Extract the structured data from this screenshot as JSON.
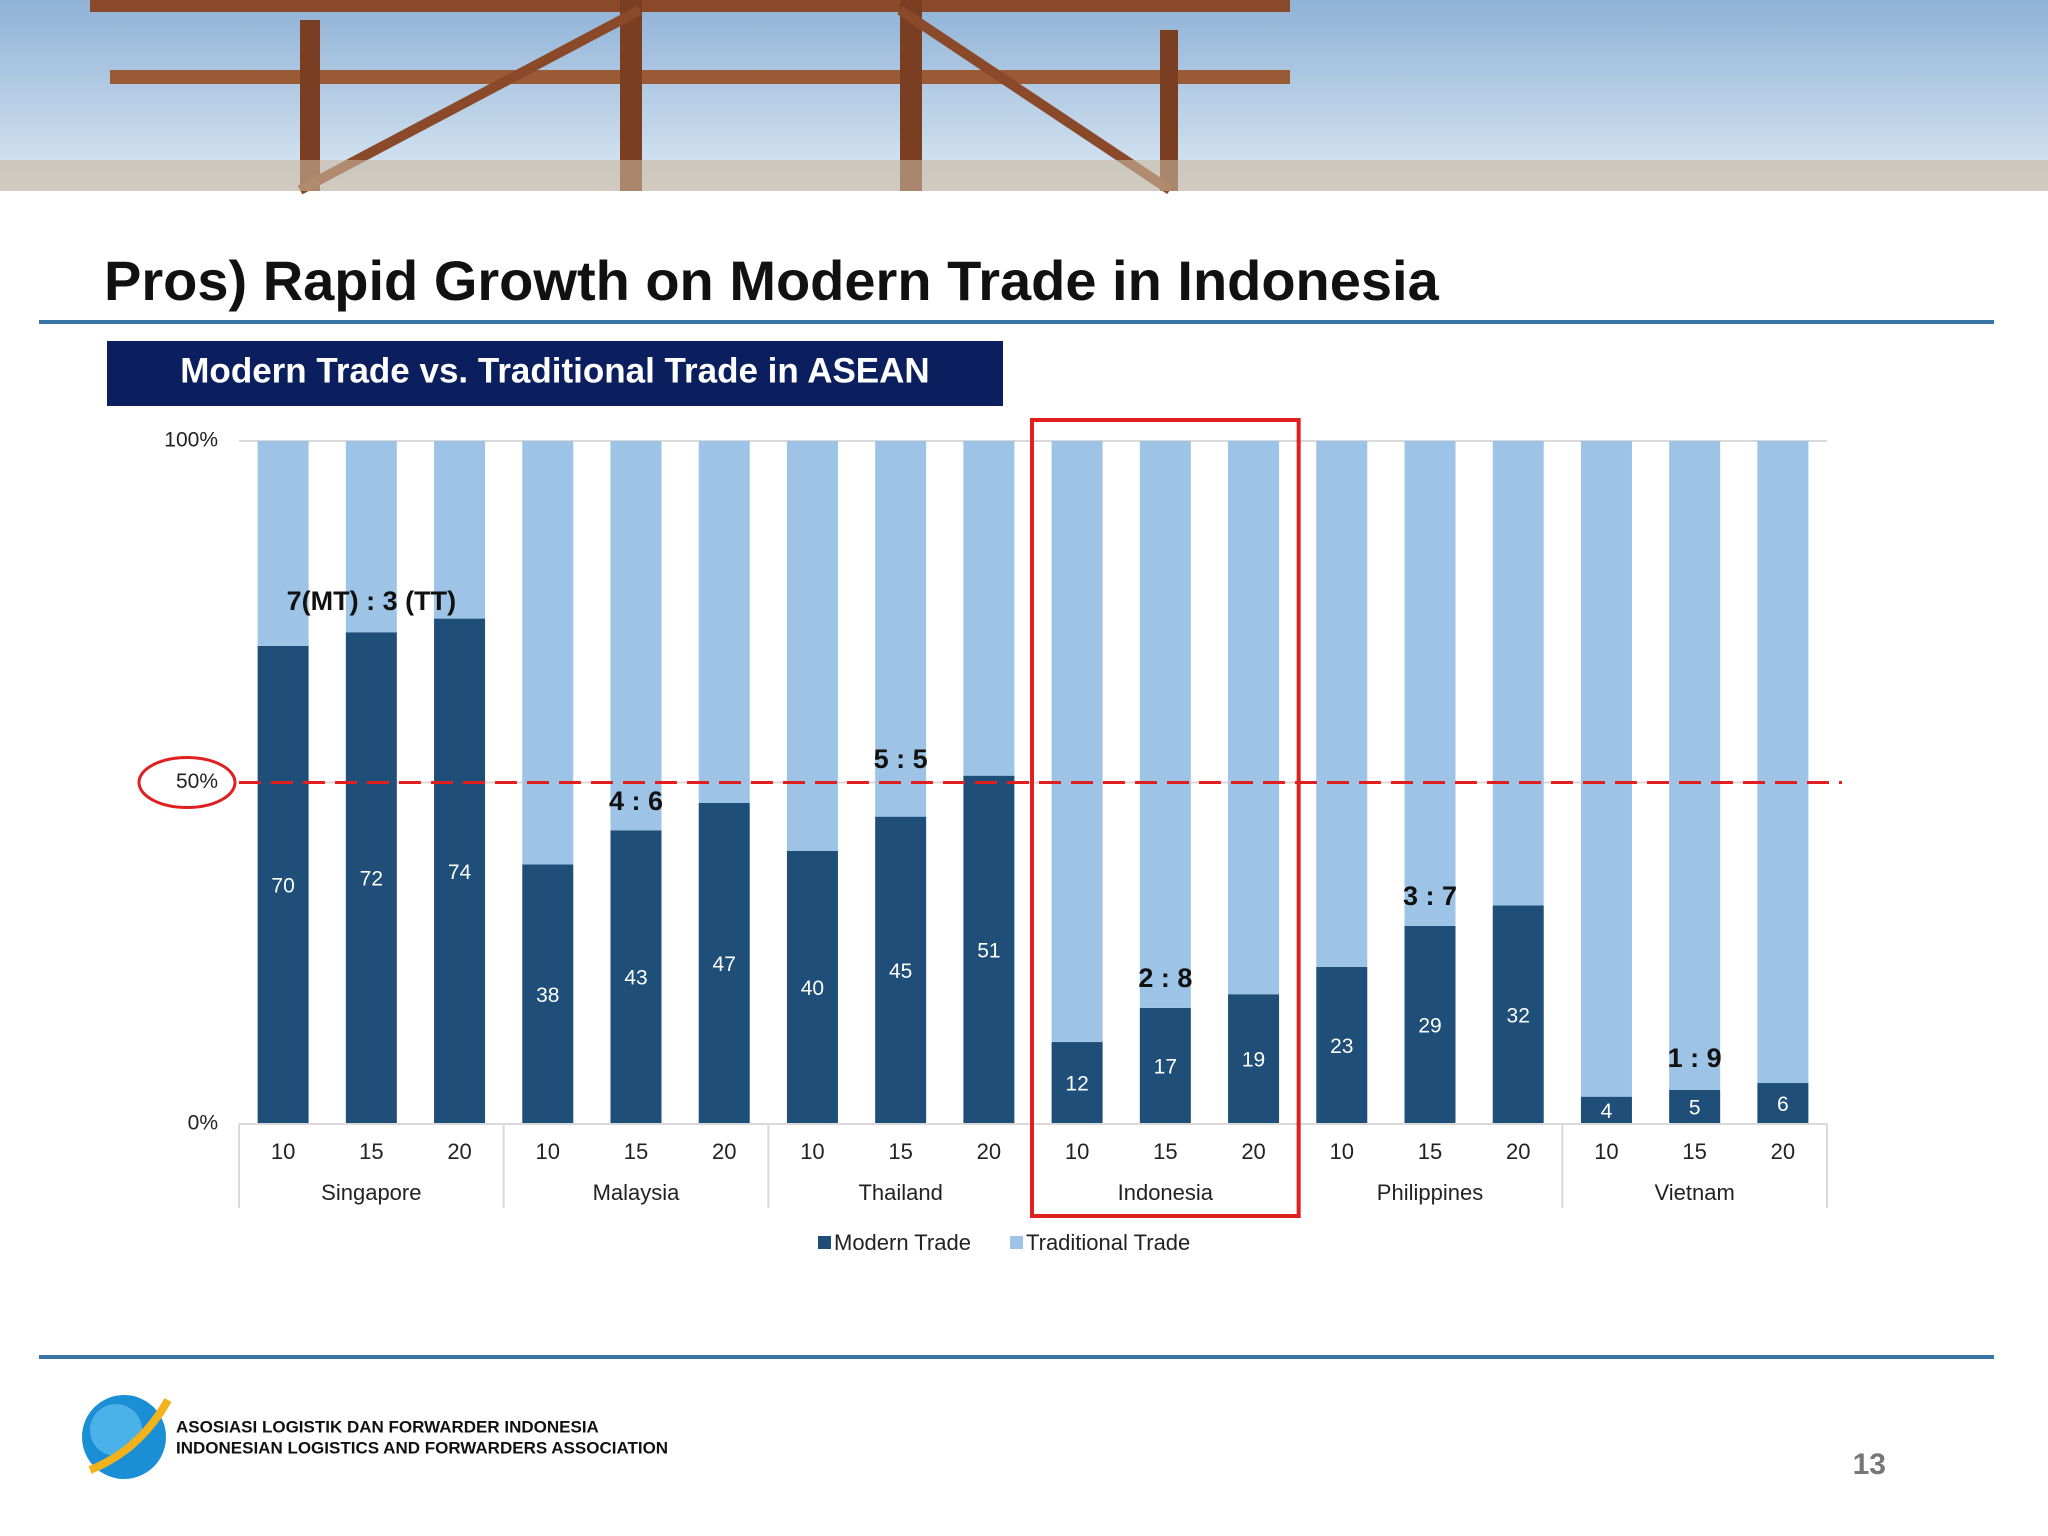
{
  "chart_data": {
    "type": "stacked_bar",
    "title": "Pros) Rapid Growth on Modern Trade in Indonesia",
    "subtitle": "Modern Trade vs. Traditional Trade in ASEAN",
    "categories": [
      "10",
      "15",
      "20",
      "10",
      "15",
      "20",
      "10",
      "15",
      "20",
      "10",
      "15",
      "20",
      "10",
      "15",
      "20",
      "10",
      "15",
      "20"
    ],
    "groups": [
      "Singapore",
      "Malaysia",
      "Thailand",
      "Indonesia",
      "Philippines",
      "Vietnam"
    ],
    "series": [
      {
        "name": "Modern Trade",
        "color": "#1f4e79",
        "values": [
          70,
          72,
          74,
          38,
          43,
          47,
          40,
          45,
          51,
          12,
          17,
          19,
          23,
          29,
          32,
          4,
          5,
          6
        ]
      },
      {
        "name": "Traditional Trade",
        "color": "#9dc3e6",
        "values": [
          30,
          28,
          26,
          62,
          57,
          53,
          60,
          55,
          49,
          88,
          83,
          81,
          77,
          71,
          68,
          96,
          95,
          94
        ]
      }
    ],
    "ylim": [
      0,
      100
    ],
    "yticks": [
      {
        "value": 0,
        "label": "0%"
      },
      {
        "value": 50,
        "label": "50%"
      },
      {
        "value": 100,
        "label": "100%"
      }
    ],
    "reference_line": 50,
    "grid": true,
    "annotations": [
      "7(MT) : 3 (TT)",
      "4 : 6",
      "5 : 5",
      "2 : 8",
      "3 : 7",
      "1 : 9"
    ],
    "highlight_group": "Indonesia"
  },
  "footer": {
    "org_line_1": "ASOSIASI LOGISTIK DAN FORWARDER INDONESIA",
    "org_line_2": "INDONESIAN LOGISTICS AND FORWARDERS ASSOCIATION",
    "page_number": "13"
  }
}
